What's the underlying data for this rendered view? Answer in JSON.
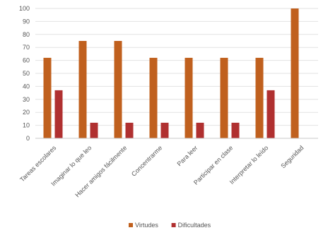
{
  "chart_data": {
    "type": "bar",
    "categories": [
      "Tareas escolares",
      "Imaginar lo que leo",
      "Hacer amigos fácilmente",
      "Concentrarme",
      "Para leer",
      "Participar en clase",
      "Interpretar lo leído",
      "Seguridad"
    ],
    "series": [
      {
        "name": "Virtudes",
        "color": "#c0601e",
        "values": [
          62,
          75,
          75,
          62,
          62,
          62,
          62,
          100
        ]
      },
      {
        "name": "Dificultades",
        "color": "#b03030",
        "values": [
          37,
          12,
          12,
          12,
          12,
          12,
          37,
          0
        ]
      }
    ],
    "yticks": [
      "0",
      "10",
      "20",
      "30",
      "40",
      "50",
      "60",
      "70",
      "80",
      "90",
      "100"
    ],
    "ylim": [
      0,
      100
    ],
    "grid": true,
    "legend_position": "bottom",
    "title": "",
    "xlabel": "",
    "ylabel": ""
  }
}
